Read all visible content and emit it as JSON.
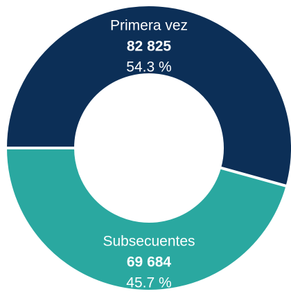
{
  "chart_data": {
    "type": "donut",
    "categories": [
      "Primera vez",
      "Subsecuentes"
    ],
    "values": [
      82825,
      69684
    ],
    "value_labels": [
      "82 825",
      "69 684"
    ],
    "percentages": [
      54.3,
      45.7
    ],
    "percentage_labels": [
      "54.3 %",
      "45.7 %"
    ],
    "colors": [
      "#0c2f57",
      "#2aa8a0"
    ]
  }
}
